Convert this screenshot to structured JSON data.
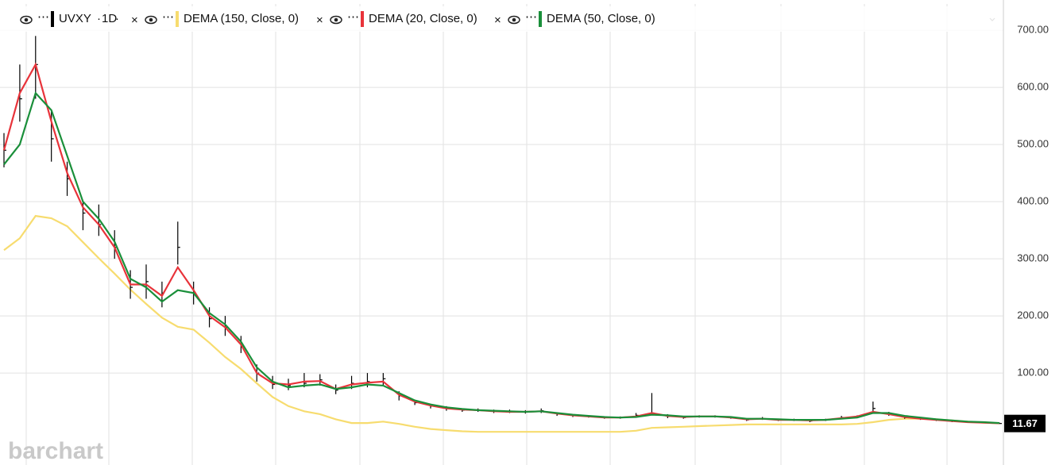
{
  "chart_data": {
    "type": "ohlc",
    "symbol": "UVXY",
    "interval": "1D",
    "price": {
      "color": "#000000",
      "high": [
        520,
        640,
        690,
        560,
        470,
        400,
        395,
        350,
        280,
        290,
        260,
        365,
        260,
        215,
        200,
        165,
        115,
        95,
        90,
        100,
        98,
        80,
        95,
        100,
        100,
        68,
        52,
        46,
        42,
        38,
        38,
        36,
        36,
        35,
        38,
        31,
        28,
        26,
        24,
        24,
        30,
        65,
        28,
        25,
        26,
        26,
        24,
        20,
        23,
        20,
        20,
        18,
        20,
        25,
        26,
        50,
        32,
        25,
        22,
        20,
        18,
        15,
        14,
        13
      ],
      "low": [
        460,
        540,
        580,
        470,
        410,
        350,
        340,
        300,
        230,
        230,
        215,
        290,
        220,
        180,
        165,
        135,
        85,
        72,
        70,
        75,
        78,
        63,
        72,
        75,
        78,
        52,
        44,
        38,
        34,
        32,
        32,
        30,
        30,
        29,
        30,
        25,
        23,
        22,
        20,
        20,
        22,
        26,
        21,
        20,
        22,
        22,
        20,
        16,
        18,
        16,
        16,
        14,
        16,
        19,
        21,
        30,
        25,
        20,
        18,
        16,
        14,
        13,
        12,
        11
      ],
      "close": [
        490,
        580,
        640,
        510,
        440,
        380,
        360,
        320,
        250,
        260,
        240,
        320,
        240,
        195,
        180,
        150,
        100,
        80,
        78,
        82,
        88,
        70,
        82,
        85,
        90,
        60,
        48,
        42,
        38,
        35,
        35,
        33,
        33,
        32,
        34,
        28,
        26,
        24,
        22,
        22,
        26,
        30,
        24,
        22,
        24,
        24,
        22,
        18,
        20,
        18,
        18,
        16,
        18,
        22,
        24,
        38,
        28,
        22,
        20,
        18,
        16,
        14,
        13,
        11.67
      ]
    },
    "series": [
      {
        "name": "DEMA (150, Close, 0)",
        "color": "#f7dc6f",
        "values": [
          315,
          336,
          375,
          371,
          357,
          329,
          301,
          274,
          246,
          221,
          197,
          181,
          176,
          153,
          128,
          107,
          82,
          58,
          42,
          33,
          28,
          19,
          12.5,
          12.5,
          15,
          11,
          6,
          2,
          0,
          -2,
          -3,
          -3,
          -3,
          -3,
          -3,
          -3,
          -3,
          -3,
          -3,
          -3,
          -1,
          4,
          5,
          6,
          7,
          8,
          9,
          10,
          10,
          10,
          10,
          10,
          10,
          10,
          11,
          14,
          18,
          20,
          20,
          19,
          17,
          15,
          13,
          12
        ]
      },
      {
        "name": "DEMA (20, Close, 0)",
        "color": "#e8333a",
        "values": [
          490,
          590,
          640,
          540,
          450,
          390,
          360,
          320,
          255,
          255,
          235,
          285,
          245,
          200,
          180,
          150,
          100,
          82,
          80,
          85,
          86,
          72,
          80,
          83,
          85,
          62,
          50,
          43,
          38,
          36,
          35,
          33,
          32,
          32,
          33,
          29,
          26,
          24,
          22,
          22,
          24,
          30,
          25,
          23,
          24,
          24,
          22,
          19,
          20,
          18,
          18,
          17,
          18,
          21,
          24,
          32,
          28,
          23,
          20,
          18,
          16,
          14,
          13,
          12
        ]
      },
      {
        "name": "DEMA (50, Close, 0)",
        "color": "#1a8f3a",
        "values": [
          465,
          500,
          590,
          560,
          480,
          400,
          370,
          330,
          265,
          250,
          225,
          245,
          240,
          205,
          185,
          155,
          110,
          85,
          75,
          78,
          80,
          72,
          75,
          80,
          78,
          65,
          52,
          45,
          40,
          37,
          35,
          34,
          33,
          32,
          33,
          30,
          27,
          25,
          23,
          22,
          23,
          27,
          26,
          24,
          24,
          24,
          23,
          20,
          20,
          19,
          18,
          18,
          18,
          20,
          22,
          30,
          30,
          25,
          22,
          19,
          17,
          15,
          14,
          12.5
        ]
      }
    ],
    "ylim": [
      -61,
      746
    ],
    "yticks": [
      {
        "value": 100,
        "label": "100.00"
      },
      {
        "value": 200,
        "label": "200.00"
      },
      {
        "value": 300,
        "label": "300.00"
      },
      {
        "value": 400,
        "label": "400.00"
      },
      {
        "value": 500,
        "label": "500.00"
      },
      {
        "value": 600,
        "label": "600.00"
      },
      {
        "value": 700,
        "label": "700.00"
      }
    ],
    "grid": true
  },
  "watermark": "barchart"
}
